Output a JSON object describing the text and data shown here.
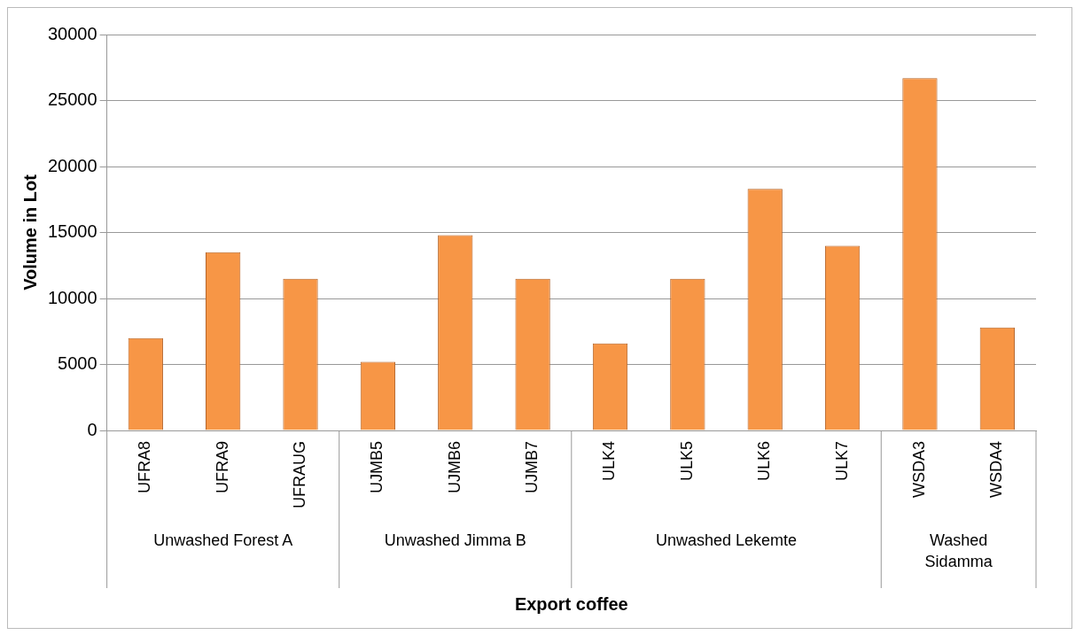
{
  "chart_data": {
    "type": "bar",
    "xlabel": "Export coffee",
    "ylabel": "Volume in Lot",
    "categories": [
      "UFRA8",
      "UFRA9",
      "UFRAUG",
      "UJMB5",
      "UJMB6",
      "UJMB7",
      "ULK4",
      "ULK5",
      "ULK6",
      "ULK7",
      "WSDA3",
      "WSDA4"
    ],
    "values": [
      7000,
      13500,
      11500,
      5200,
      14800,
      11500,
      6600,
      11500,
      18300,
      14000,
      26700,
      7800
    ],
    "color": "#f79646",
    "ylim": [
      0,
      30000
    ],
    "yticks": [
      0,
      5000,
      10000,
      15000,
      20000,
      25000,
      30000
    ],
    "grid": "y",
    "legend": false,
    "annotations": [
      "Unwashed Forest A",
      "Unwashed Jimma B",
      "Unwashed Lekemte",
      "Washed Sidamma"
    ]
  }
}
